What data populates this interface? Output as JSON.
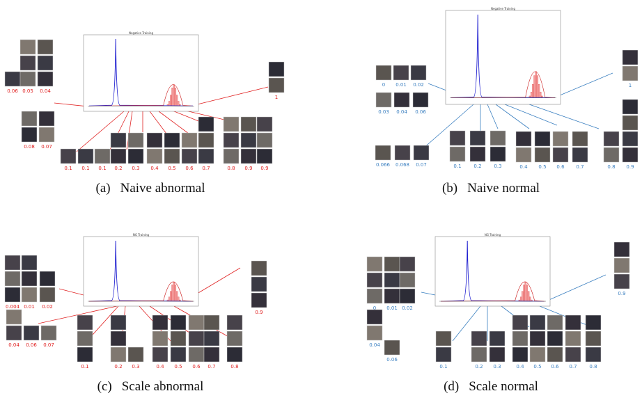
{
  "figure": {
    "panels": [
      {
        "label": "(a)",
        "caption": "Naive abnormal",
        "chart_title": "Negative Training",
        "scores": [
          "0.06",
          "0.05",
          "0.04",
          "0.08",
          "0.07",
          "1",
          "0.1",
          "0.1",
          "0.1",
          "0.2",
          "0.3",
          "0.4",
          "0.5",
          "0.6",
          "0.7",
          "0.8",
          "0.9",
          "0.9"
        ]
      },
      {
        "label": "(b)",
        "caption": "Naive normal",
        "chart_title": "Negative Training",
        "scores": [
          "0",
          "0.01",
          "0.02",
          "0.03",
          "0.04",
          "0.06",
          "1",
          "0.066",
          "0.068",
          "0.07",
          "0.1",
          "0.2",
          "0.3",
          "0.4",
          "0.5",
          "0.6",
          "0.7",
          "0.8",
          "0.9"
        ]
      },
      {
        "label": "(c)",
        "caption": "Scale abnormal",
        "chart_title": "NG Training",
        "scores": [
          "0.004",
          "0.01",
          "0.02",
          "0.04",
          "0.06",
          "0.07",
          "0.9",
          "0.1",
          "0.2",
          "0.3",
          "0.4",
          "0.5",
          "0.6",
          "0.7",
          "0.8"
        ]
      },
      {
        "label": "(d)",
        "caption": "Scale normal",
        "chart_title": "NG Training",
        "scores": [
          "0",
          "0.01",
          "0.02",
          "0.04",
          "0.06",
          "0.9",
          "0.1",
          "0.2",
          "0.3",
          "0.4",
          "0.5",
          "0.6",
          "0.7",
          "0.8"
        ]
      }
    ]
  }
}
